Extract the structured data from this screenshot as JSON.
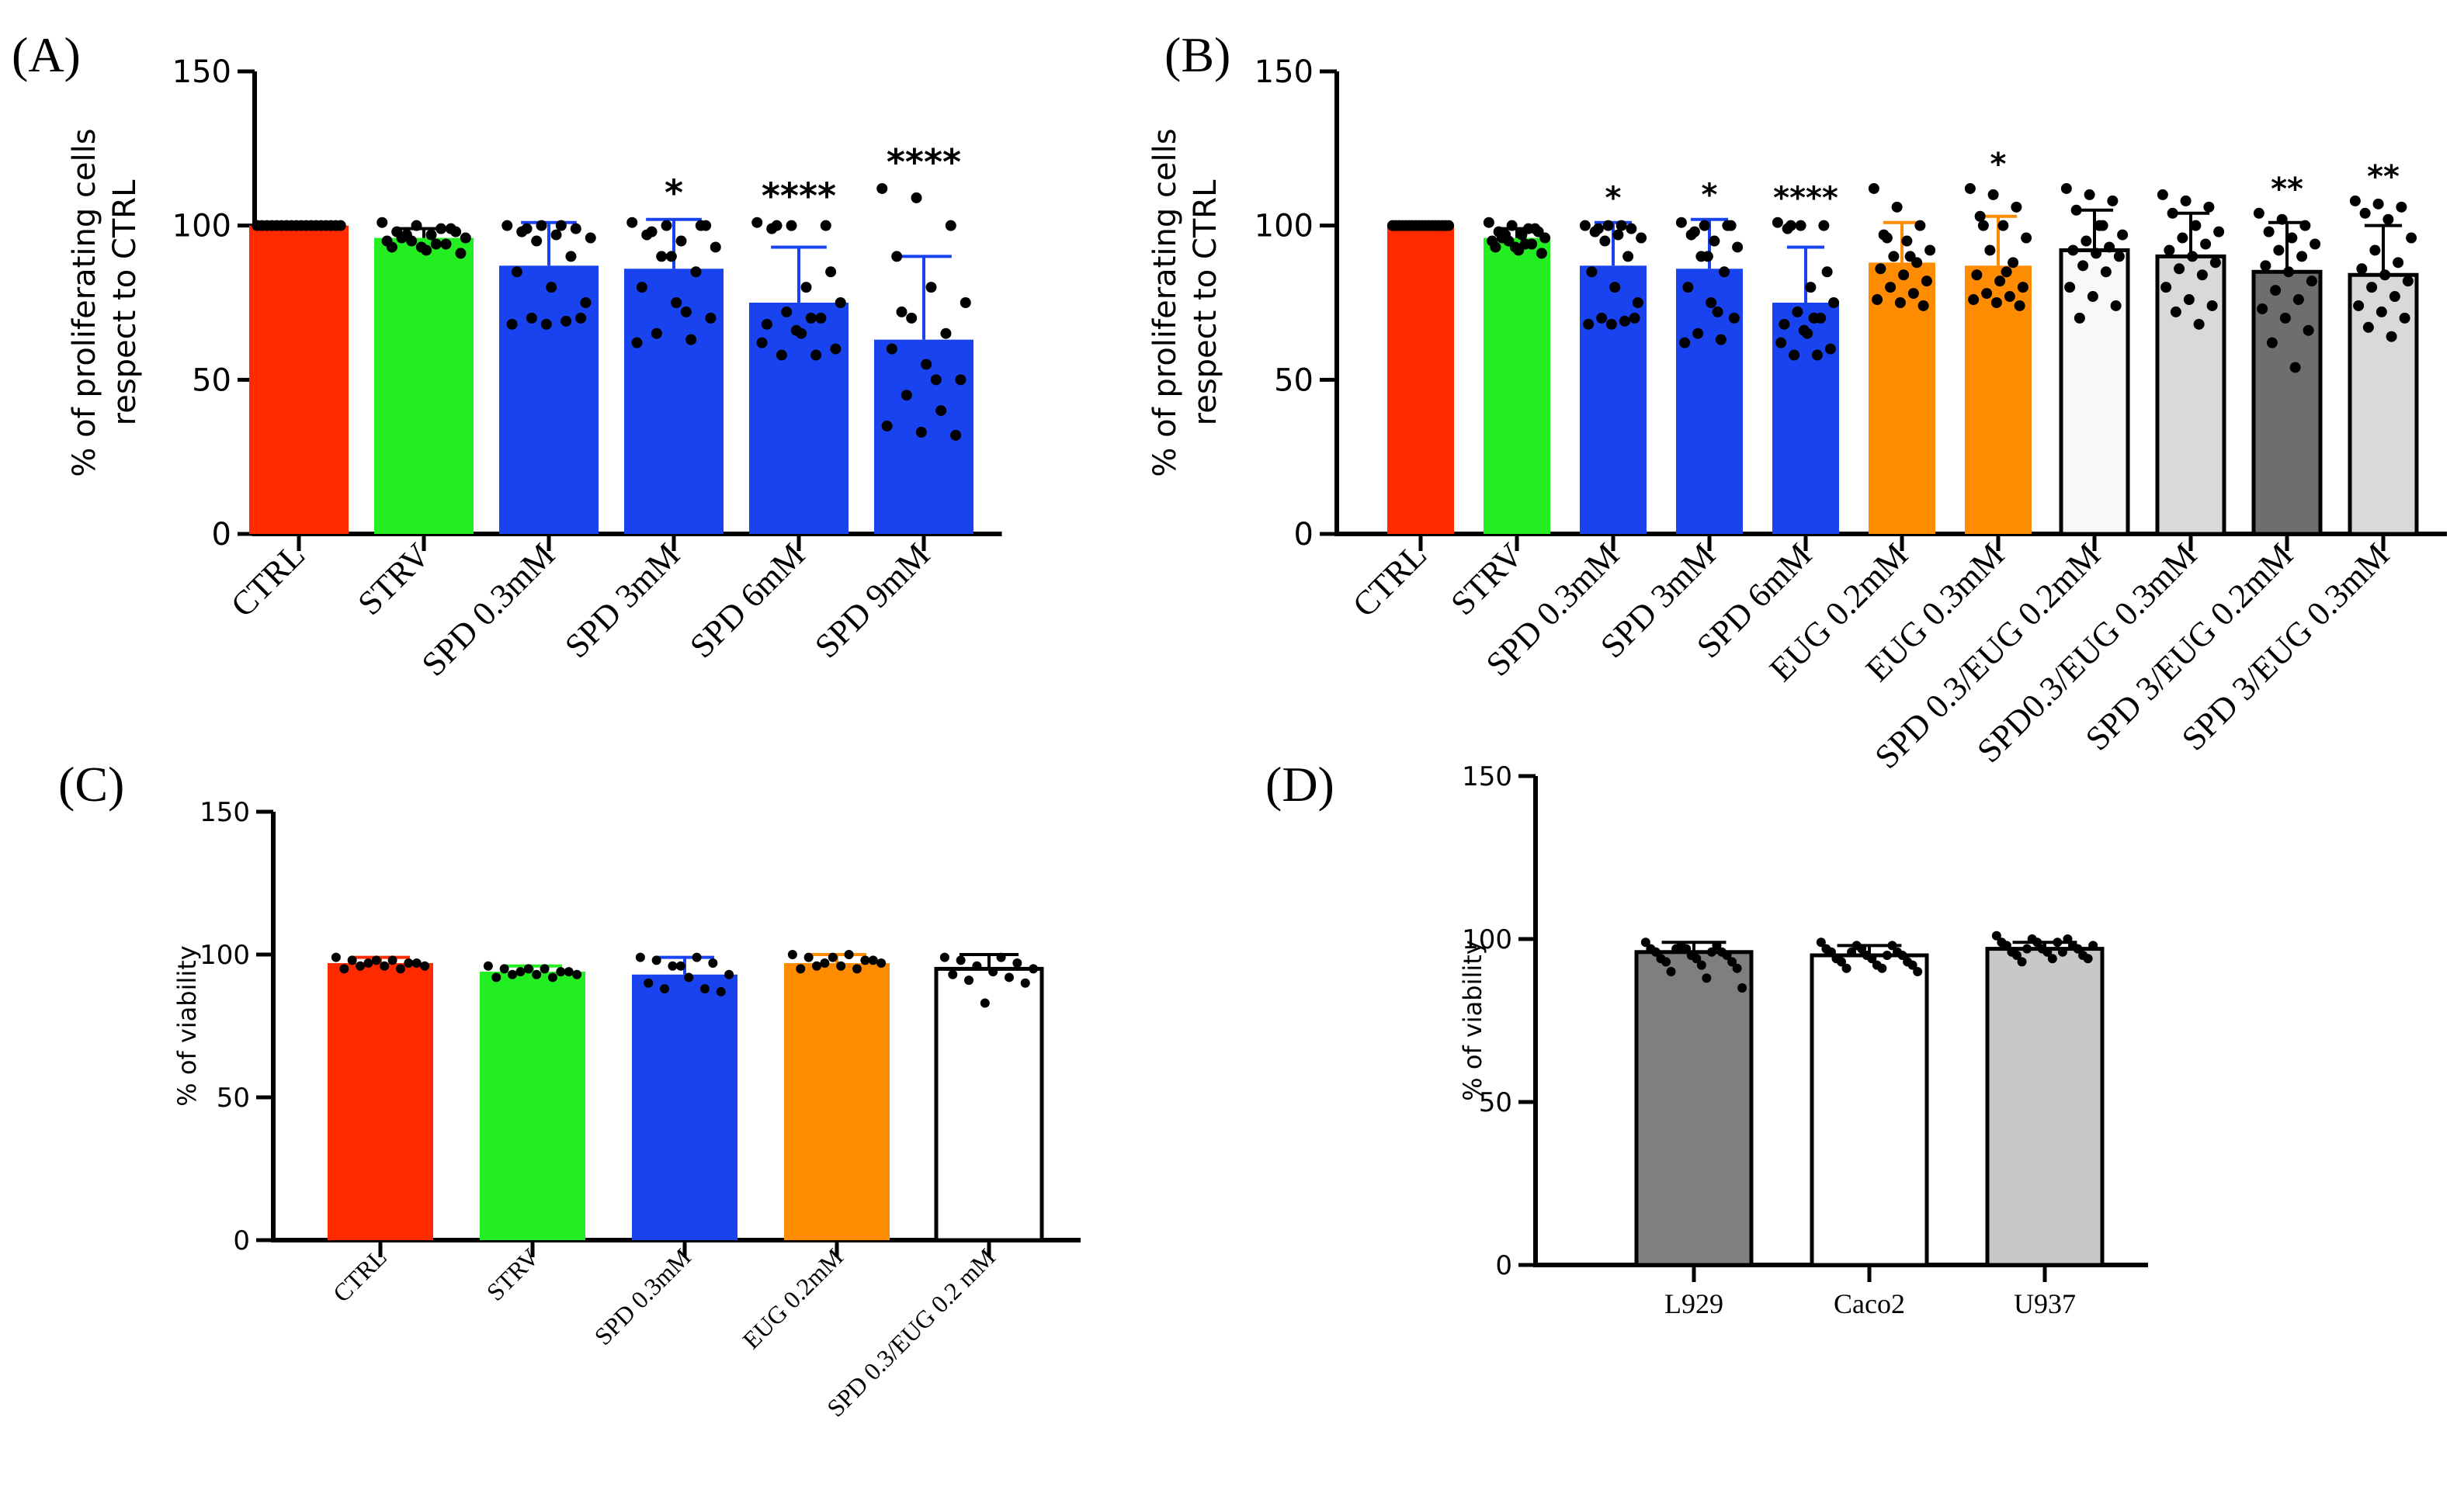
{
  "chart_data": [
    {
      "panel": "(A)",
      "type": "bar",
      "ylabel": [
        "% of proliferating cells",
        "respect to CTRL"
      ],
      "ylim": [
        0,
        150
      ],
      "yticks": [
        0,
        50,
        100,
        150
      ],
      "categories": [
        "CTRL",
        "STRV",
        "SPD 0.3mM",
        "SPD 3mM",
        "SPD 6mM",
        "SPD 9mM"
      ],
      "values": [
        100,
        96,
        87,
        86,
        75,
        63
      ],
      "errors": [
        0,
        3,
        14,
        16,
        18,
        27
      ],
      "significance": [
        "",
        "",
        "",
        "*",
        "****",
        "****"
      ],
      "colors": [
        "#ff2a00",
        "#22ee22",
        "#1a43f0",
        "#1a43f0",
        "#1a43f0",
        "#1a43f0"
      ],
      "error_colors": [
        "#000000",
        "#000000",
        "#1a43f0",
        "#1a43f0",
        "#1a43f0",
        "#1a43f0"
      ],
      "points": [
        [
          100,
          100,
          100,
          100,
          100,
          100,
          100,
          100,
          100,
          100,
          100,
          100,
          100,
          100,
          100,
          100,
          100,
          100
        ],
        [
          101,
          100,
          99,
          98,
          97,
          96,
          95,
          94,
          93,
          92,
          91,
          97,
          99,
          95,
          93,
          98,
          96,
          94
        ],
        [
          100,
          100,
          99,
          98,
          97,
          96,
          95,
          90,
          85,
          80,
          75,
          70,
          69,
          68,
          68,
          70,
          99,
          100
        ],
        [
          101,
          100,
          100,
          97,
          95,
          93,
          90,
          85,
          80,
          75,
          70,
          65,
          63,
          62,
          90,
          100,
          98,
          72
        ],
        [
          101,
          100,
          100,
          99,
          80,
          75,
          72,
          70,
          68,
          65,
          60,
          58,
          58,
          62,
          66,
          85,
          100,
          70
        ],
        [
          112,
          109,
          100,
          90,
          80,
          75,
          70,
          65,
          60,
          55,
          50,
          45,
          40,
          35,
          33,
          32,
          72,
          50
        ]
      ],
      "x_rotation": -45
    },
    {
      "panel": "(B)",
      "type": "bar",
      "ylabel": [
        "% of proliferating cells",
        "respect to CTRL"
      ],
      "ylim": [
        0,
        150
      ],
      "yticks": [
        0,
        50,
        100,
        150
      ],
      "categories": [
        "CTRL",
        "STRV",
        "SPD 0.3mM",
        "SPD 3mM",
        "SPD 6mM",
        "EUG 0.2mM",
        "EUG 0.3mM",
        "SPD 0.3/EUG 0.2mM",
        "SPD0.3/EUG 0.3mM",
        "SPD 3/EUG 0.2mM",
        "SPD 3/EUG 0.3mM"
      ],
      "values": [
        100,
        96,
        87,
        86,
        75,
        88,
        87,
        92,
        90,
        85,
        84
      ],
      "errors": [
        0,
        3,
        14,
        16,
        18,
        13,
        16,
        13,
        14,
        16,
        16
      ],
      "significance": [
        "",
        "",
        "*",
        "*",
        "****",
        "",
        "*",
        "",
        "",
        "**",
        "**"
      ],
      "colors": [
        "#ff2a00",
        "#22ee22",
        "#1a43f0",
        "#1a43f0",
        "#1a43f0",
        "#ff8c00",
        "#ff8c00",
        "#f8f8f8",
        "#d9d9d9",
        "#6e6e6e",
        "#d9d9d9"
      ],
      "error_colors": [
        "#000000",
        "#000000",
        "#1a43f0",
        "#1a43f0",
        "#1a43f0",
        "#ff8c00",
        "#ff8c00",
        "#000000",
        "#000000",
        "#000000",
        "#000000"
      ],
      "points": [
        [
          100,
          100,
          100,
          100,
          100,
          100,
          100,
          100,
          100,
          100,
          100,
          100,
          100,
          100,
          100,
          100,
          100,
          100
        ],
        [
          101,
          100,
          99,
          98,
          97,
          96,
          95,
          94,
          93,
          92,
          91,
          97,
          99,
          95,
          93,
          98,
          96,
          94
        ],
        [
          100,
          100,
          99,
          98,
          97,
          96,
          95,
          90,
          85,
          80,
          75,
          70,
          69,
          68,
          68,
          70,
          99,
          100
        ],
        [
          101,
          100,
          100,
          97,
          95,
          93,
          90,
          85,
          80,
          75,
          70,
          65,
          63,
          62,
          90,
          100,
          98,
          72
        ],
        [
          101,
          100,
          100,
          99,
          80,
          75,
          72,
          70,
          68,
          65,
          60,
          58,
          58,
          62,
          66,
          85,
          100,
          70
        ],
        [
          112,
          106,
          100,
          97,
          95,
          92,
          90,
          88,
          86,
          84,
          82,
          80,
          78,
          76,
          75,
          74,
          96,
          90
        ],
        [
          112,
          110,
          106,
          103,
          100,
          96,
          92,
          88,
          84,
          82,
          80,
          78,
          77,
          76,
          75,
          74,
          100,
          85
        ],
        [
          112,
          110,
          108,
          105,
          100,
          97,
          95,
          93,
          92,
          91,
          90,
          87,
          85,
          80,
          77,
          74,
          70,
          100
        ],
        [
          110,
          108,
          106,
          104,
          100,
          98,
          96,
          94,
          92,
          90,
          88,
          86,
          84,
          80,
          76,
          74,
          72,
          68
        ],
        [
          104,
          102,
          100,
          98,
          96,
          94,
          92,
          90,
          87,
          85,
          82,
          79,
          76,
          73,
          70,
          66,
          62,
          54
        ],
        [
          108,
          107,
          106,
          104,
          102,
          96,
          92,
          88,
          86,
          84,
          82,
          80,
          77,
          74,
          72,
          70,
          67,
          64
        ]
      ],
      "x_rotation": -45
    },
    {
      "panel": "(C)",
      "type": "bar",
      "ylabel": [
        "% of viability"
      ],
      "ylim": [
        0,
        150
      ],
      "yticks": [
        0,
        50,
        100,
        150
      ],
      "categories": [
        "CTRL",
        "STRV",
        "SPD 0.3mM",
        "EUG 0.2mM",
        "SPD 0.3/EUG 0.2 mM"
      ],
      "values": [
        97,
        94,
        93,
        97,
        95
      ],
      "errors": [
        2,
        2,
        6,
        3,
        5
      ],
      "significance": [
        "",
        "",
        "",
        "",
        ""
      ],
      "colors": [
        "#ff2a00",
        "#22ee22",
        "#1a43f0",
        "#ff8c00",
        "#ffffff"
      ],
      "error_colors": [
        "#ff2a00",
        "#22ee22",
        "#1a43f0",
        "#ff8c00",
        "#000000"
      ],
      "points": [
        [
          99,
          98,
          98,
          97,
          97,
          96,
          96,
          95,
          95,
          96,
          97,
          98
        ],
        [
          96,
          95,
          95,
          94,
          94,
          93,
          93,
          92,
          92,
          93,
          94,
          95
        ],
        [
          99,
          99,
          98,
          97,
          96,
          93,
          92,
          90,
          88,
          88,
          87,
          96
        ],
        [
          100,
          100,
          99,
          98,
          97,
          97,
          96,
          95,
          95,
          96,
          98,
          99
        ],
        [
          99,
          99,
          98,
          97,
          96,
          95,
          94,
          93,
          92,
          91,
          90,
          83
        ]
      ],
      "x_rotation": -45
    },
    {
      "panel": "(D)",
      "type": "bar",
      "ylabel": [
        "% of viability"
      ],
      "ylim": [
        0,
        150
      ],
      "yticks": [
        0,
        50,
        100,
        150
      ],
      "categories": [
        "L929",
        "Caco2",
        "U937"
      ],
      "values": [
        96,
        95,
        97
      ],
      "errors": [
        3,
        3,
        2
      ],
      "significance": [
        "",
        "",
        ""
      ],
      "colors": [
        "#7f7f7f",
        "#ffffff",
        "#c8c8c8"
      ],
      "error_colors": [
        "#000000",
        "#000000",
        "#000000"
      ],
      "points": [
        [
          99,
          98,
          98,
          97,
          97,
          96,
          96,
          95,
          95,
          94,
          94,
          93,
          93,
          92,
          91,
          90,
          88,
          85,
          97,
          96
        ],
        [
          99,
          98,
          98,
          97,
          97,
          96,
          96,
          95,
          95,
          94,
          94,
          93,
          93,
          92,
          92,
          91,
          91,
          90,
          96,
          95
        ],
        [
          101,
          100,
          100,
          99,
          99,
          98,
          98,
          97,
          97,
          96,
          96,
          95,
          95,
          94,
          94,
          93,
          99,
          98,
          97,
          96
        ]
      ],
      "x_rotation": 0
    }
  ]
}
